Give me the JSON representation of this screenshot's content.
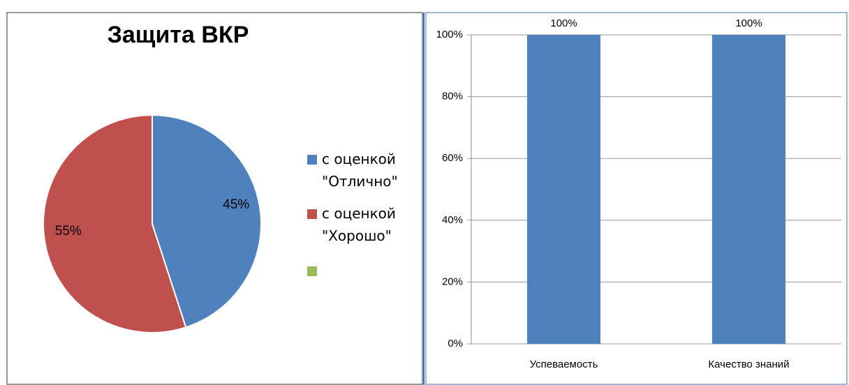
{
  "chart_data": [
    {
      "type": "pie",
      "title": "Защита ВКР",
      "categories": [
        "с оценкой \"Отлично\"",
        "с оценкой \"Хорошо\"",
        null
      ],
      "values": [
        45,
        55,
        0
      ],
      "value_labels": [
        "45%",
        "55%",
        null
      ],
      "colors": [
        "#4f81bd",
        "#c0504d",
        "#9bbb59"
      ],
      "legend": "right"
    },
    {
      "type": "bar",
      "categories": [
        "Успеваемость",
        "Качество знаний"
      ],
      "values": [
        100,
        100
      ],
      "value_labels": [
        "100%",
        "100%"
      ],
      "color": "#4f81bd",
      "ylim": [
        0,
        100
      ],
      "yticks": [
        {
          "value": 0,
          "label": "0%"
        },
        {
          "value": 20,
          "label": "20%"
        },
        {
          "value": 40,
          "label": "40%"
        },
        {
          "value": 60,
          "label": "60%"
        },
        {
          "value": 80,
          "label": "80%"
        },
        {
          "value": 100,
          "label": "100%"
        }
      ],
      "grid": true
    }
  ]
}
